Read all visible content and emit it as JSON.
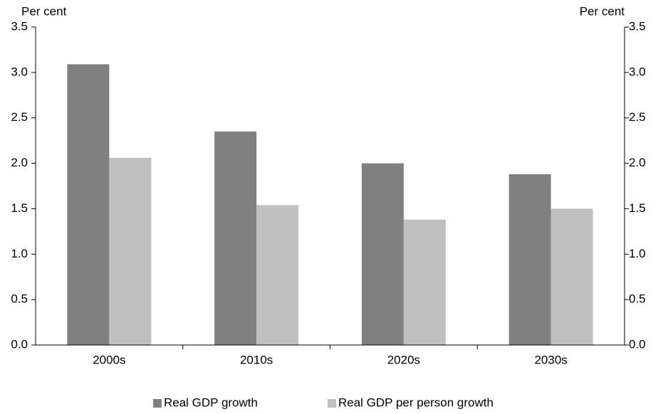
{
  "chart_data": {
    "type": "bar",
    "y_label": "Per cent",
    "y2_label": "Per cent",
    "categories": [
      "2000s",
      "2010s",
      "2020s",
      "2030s"
    ],
    "series": [
      {
        "name": "Real GDP growth",
        "color": "#808080",
        "values": [
          3.09,
          2.35,
          2.0,
          1.88
        ]
      },
      {
        "name": "Real GDP per person growth",
        "color": "#c0c0c0",
        "values": [
          2.06,
          1.54,
          1.38,
          1.5
        ]
      }
    ],
    "ylim": [
      0,
      3.5
    ],
    "yticks": [
      {
        "value": 0,
        "label": "0.0"
      },
      0.5,
      {
        "value": 1,
        "label": "1.0"
      },
      1.5,
      {
        "value": 2,
        "label": "2.0"
      },
      2.5,
      {
        "value": 3,
        "label": "3.0"
      },
      3.5
    ],
    "y2lim": [
      0,
      3.5
    ],
    "y2ticks": [
      {
        "value": 0,
        "label": "0.0"
      },
      0.5,
      {
        "value": 1,
        "label": "1.0"
      },
      1.5,
      {
        "value": 2,
        "label": "2.0"
      },
      2.5,
      {
        "value": 3,
        "label": "3.0"
      },
      3.5
    ],
    "grid": false,
    "legend": "bottom"
  }
}
